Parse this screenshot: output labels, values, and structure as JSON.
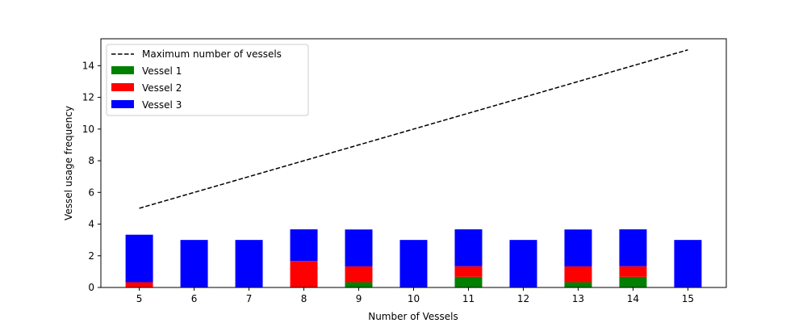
{
  "chart_data": {
    "type": "bar",
    "stacked": true,
    "title": "",
    "xlabel": "Number of Vessels",
    "ylabel": "Vessel usage frequency",
    "categories": [
      "5",
      "6",
      "7",
      "8",
      "9",
      "10",
      "11",
      "12",
      "13",
      "14",
      "15"
    ],
    "ylim": [
      0,
      15.7
    ],
    "yticks": [
      "0",
      "2",
      "4",
      "6",
      "8",
      "10",
      "12",
      "14"
    ],
    "grid": false,
    "legend_position": "top-left",
    "series": [
      {
        "name": "Vessel 1",
        "color": "#008000",
        "values": [
          0,
          0,
          0,
          0,
          0.33,
          0,
          0.67,
          0,
          0.33,
          0.67,
          0
        ]
      },
      {
        "name": "Vessel 2",
        "color": "#ff0000",
        "values": [
          0.33,
          0,
          0,
          1.67,
          1.0,
          0,
          0.67,
          0,
          1.0,
          0.67,
          0
        ]
      },
      {
        "name": "Vessel 3",
        "color": "#0000ff",
        "values": [
          3.0,
          3.0,
          3.0,
          2.0,
          2.33,
          3.0,
          2.33,
          3.0,
          2.33,
          2.33,
          3.0
        ]
      }
    ],
    "line": {
      "name": "Maximum number of vessels",
      "color": "#000000",
      "style": "dashed",
      "x": [
        5,
        15
      ],
      "y": [
        5,
        15
      ]
    }
  }
}
